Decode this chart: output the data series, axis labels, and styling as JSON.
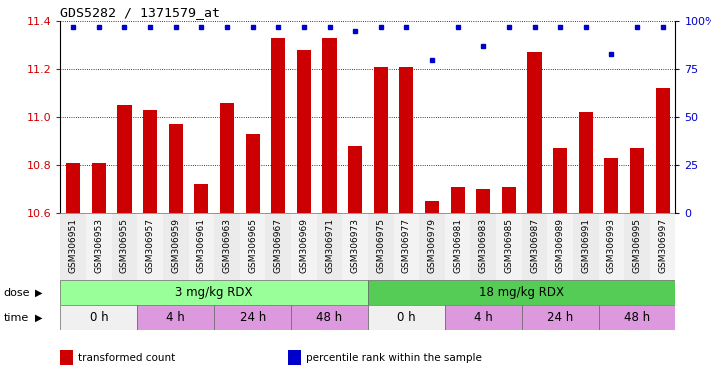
{
  "title": "GDS5282 / 1371579_at",
  "samples": [
    "GSM306951",
    "GSM306953",
    "GSM306955",
    "GSM306957",
    "GSM306959",
    "GSM306961",
    "GSM306963",
    "GSM306965",
    "GSM306967",
    "GSM306969",
    "GSM306971",
    "GSM306973",
    "GSM306975",
    "GSM306977",
    "GSM306979",
    "GSM306981",
    "GSM306983",
    "GSM306985",
    "GSM306987",
    "GSM306989",
    "GSM306991",
    "GSM306993",
    "GSM306995",
    "GSM306997"
  ],
  "transformed_count": [
    10.81,
    10.81,
    11.05,
    11.03,
    10.97,
    10.72,
    11.06,
    10.93,
    11.33,
    11.28,
    11.33,
    10.88,
    11.21,
    11.21,
    10.65,
    10.71,
    10.7,
    10.71,
    11.27,
    10.87,
    11.02,
    10.83,
    10.87,
    11.12
  ],
  "percentile_rank": [
    97,
    97,
    97,
    97,
    97,
    97,
    97,
    97,
    97,
    97,
    97,
    95,
    97,
    97,
    80,
    97,
    87,
    97,
    97,
    97,
    97,
    83,
    97,
    97
  ],
  "bar_color": "#cc0000",
  "dot_color": "#0000cc",
  "ylim_left": [
    10.6,
    11.4
  ],
  "ylim_right": [
    0,
    100
  ],
  "yticks_left": [
    10.6,
    10.8,
    11.0,
    11.2,
    11.4
  ],
  "yticks_right": [
    0,
    25,
    50,
    75,
    100
  ],
  "ytick_labels_right": [
    "0",
    "25",
    "50",
    "75",
    "100%"
  ],
  "dose_labels": [
    {
      "text": "3 mg/kg RDX",
      "start": 0,
      "end": 12,
      "color": "#99ff99"
    },
    {
      "text": "18 mg/kg RDX",
      "start": 12,
      "end": 24,
      "color": "#55cc55"
    }
  ],
  "time_groups": [
    {
      "text": "0 h",
      "start": 0,
      "end": 3,
      "color": "#f0f0f0"
    },
    {
      "text": "4 h",
      "start": 3,
      "end": 6,
      "color": "#dd99dd"
    },
    {
      "text": "24 h",
      "start": 6,
      "end": 9,
      "color": "#dd99dd"
    },
    {
      "text": "48 h",
      "start": 9,
      "end": 12,
      "color": "#dd99dd"
    },
    {
      "text": "0 h",
      "start": 12,
      "end": 15,
      "color": "#f0f0f0"
    },
    {
      "text": "4 h",
      "start": 15,
      "end": 18,
      "color": "#dd99dd"
    },
    {
      "text": "24 h",
      "start": 18,
      "end": 21,
      "color": "#dd99dd"
    },
    {
      "text": "48 h",
      "start": 21,
      "end": 24,
      "color": "#dd99dd"
    }
  ],
  "legend_items": [
    {
      "color": "#cc0000",
      "label": "transformed count"
    },
    {
      "color": "#0000cc",
      "label": "percentile rank within the sample"
    }
  ],
  "bg_color": "#ffffff",
  "grid_color": "#000000",
  "tick_label_color_left": "#cc0000",
  "tick_label_color_right": "#0000cc"
}
